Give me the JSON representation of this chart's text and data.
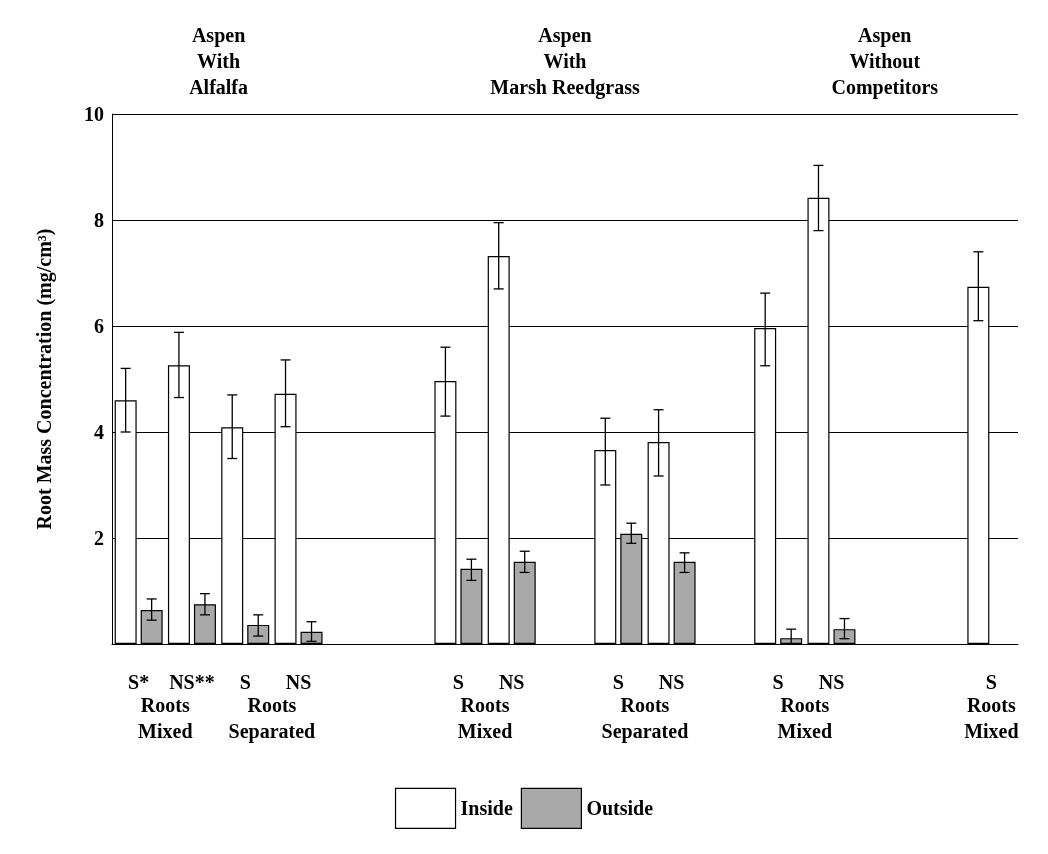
{
  "chart_data": {
    "type": "bar",
    "ylabel": "Root Mass Concentration (mg/cm³)",
    "categories": [
      "S*",
      "NS**",
      "S",
      "NS",
      null,
      null,
      "S",
      "NS",
      null,
      "S",
      "NS",
      null,
      "S",
      "NS",
      null,
      null,
      "S"
    ],
    "series": [
      {
        "name": "Inside",
        "color": "#ffffff",
        "values": [
          4.6,
          5.26,
          4.09,
          4.72,
          null,
          null,
          4.96,
          7.32,
          null,
          3.66,
          3.81,
          null,
          5.96,
          8.42,
          null,
          null,
          6.74
        ],
        "errors": [
          [
            4.0,
            5.2
          ],
          [
            4.65,
            5.88
          ],
          [
            3.5,
            4.7
          ],
          [
            4.1,
            5.36
          ],
          null,
          null,
          [
            4.3,
            5.6
          ],
          [
            6.7,
            7.95
          ],
          null,
          [
            3.0,
            4.26
          ],
          [
            3.17,
            4.42
          ],
          null,
          [
            5.25,
            6.62
          ],
          [
            7.8,
            9.03
          ],
          null,
          null,
          [
            6.1,
            7.4
          ]
        ]
      },
      {
        "name": "Outside",
        "color": "#a9a9a9",
        "values": [
          0.64,
          0.75,
          0.36,
          0.23,
          null,
          null,
          1.42,
          1.55,
          null,
          2.08,
          1.55,
          null,
          0.11,
          0.28,
          null,
          null,
          null
        ],
        "errors": [
          [
            0.45,
            0.85
          ],
          [
            0.55,
            0.95
          ],
          [
            0.15,
            0.55
          ],
          [
            0.05,
            0.42
          ],
          null,
          null,
          [
            1.2,
            1.6
          ],
          [
            1.35,
            1.75
          ],
          null,
          [
            1.9,
            2.28
          ],
          [
            1.35,
            1.72
          ],
          null,
          [
            0.0,
            0.28
          ],
          [
            0.1,
            0.48
          ],
          null,
          null,
          null
        ]
      }
    ],
    "ylim": [
      0,
      10
    ],
    "yticks": [
      2,
      4,
      6,
      8,
      10
    ],
    "grid": "y",
    "legend": "bottom",
    "annotations": [
      "Aspen\nWith\nAlfalfa",
      "Aspen\nWith\nMarsh Reedgrass",
      "Aspen\nWithout\nCompetitors",
      "Roots\nMixed",
      "Roots\nSeparated",
      "Roots\nMixed",
      "Roots\nSeparated",
      "Roots\nMixed",
      "Roots\nMixed"
    ]
  }
}
